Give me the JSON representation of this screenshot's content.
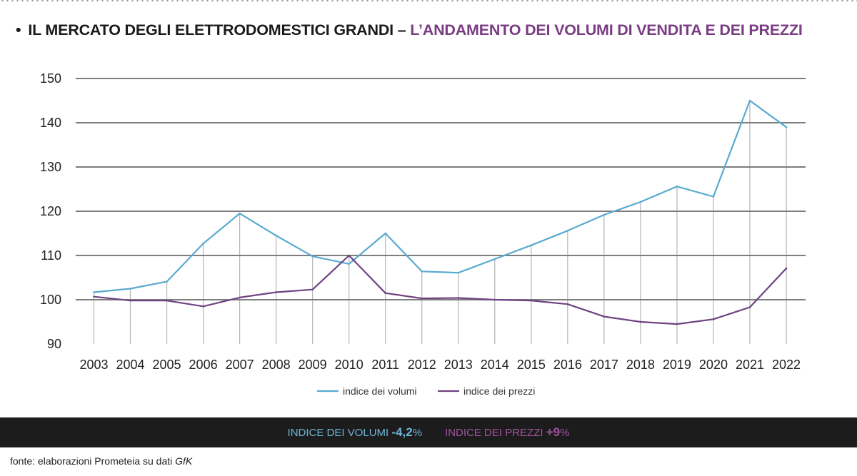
{
  "title": {
    "bullet": "•",
    "part_a": "IL MERCATO DEGLI ELETTRODOMESTICI GRANDI –",
    "part_b": "L’ANDAMENTO DEI VOLUMI DI VENDITA E DEI PREZZI"
  },
  "chart_data": {
    "type": "line",
    "title": "",
    "xlabel": "",
    "ylabel": "",
    "x": [
      "2003",
      "2004",
      "2005",
      "2006",
      "2007",
      "2008",
      "2009",
      "2010",
      "2011",
      "2012",
      "2013",
      "2014",
      "2015",
      "2016",
      "2017",
      "2018",
      "2019",
      "2020",
      "2021",
      "2022"
    ],
    "ylim": [
      90,
      150
    ],
    "yticks": [
      "90",
      "100",
      "110",
      "120",
      "130",
      "140",
      "150"
    ],
    "grid": true,
    "legend_position": "bottom",
    "series": [
      {
        "name": "indice dei volumi",
        "color": "#5aaad0",
        "values": [
          101.7,
          102.5,
          104.1,
          112.7,
          119.5,
          114.5,
          109.8,
          108.1,
          115.0,
          106.4,
          106.1,
          109.2,
          112.3,
          115.6,
          119.2,
          122.1,
          125.6,
          123.3,
          145.0,
          139.0
        ]
      },
      {
        "name": "indice dei prezzi",
        "color": "#6e4383",
        "values": [
          100.7,
          99.8,
          99.8,
          98.5,
          100.5,
          101.7,
          102.3,
          110.0,
          101.5,
          100.3,
          100.4,
          100.0,
          99.8,
          99.0,
          96.2,
          95.0,
          94.5,
          95.6,
          98.3,
          107.1
        ]
      }
    ]
  },
  "banner": {
    "volumi_label": "INDICE DEI VOLUMI",
    "volumi_value": "-4,2",
    "volumi_unit": "%",
    "prezzi_label": "INDICE DEI PREZZI",
    "prezzi_value": "+9",
    "prezzi_unit": "%"
  },
  "source": {
    "text": "fonte: elaborazioni Prometeia su dati",
    "italic": "GfK"
  }
}
